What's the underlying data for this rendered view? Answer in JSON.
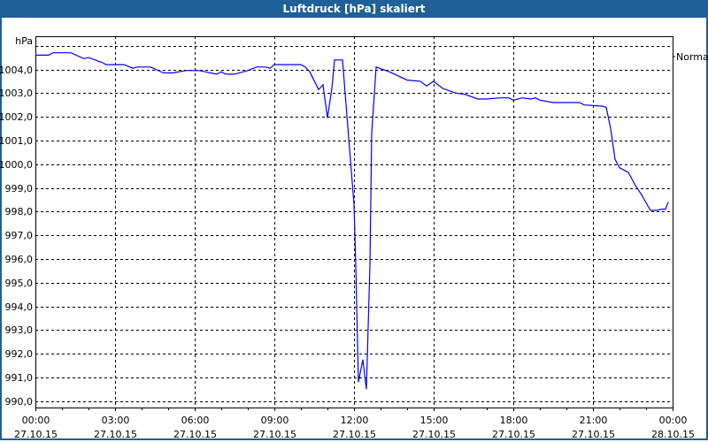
{
  "window": {
    "title": "Luftdruck [hPa] skaliert"
  },
  "colors": {
    "titlebar": "#1f6097",
    "series": "#0000ff",
    "grid": "#000000"
  },
  "chart_data": {
    "type": "line",
    "title": "Luftdruck [hPa] skaliert",
    "ylabel": "hPa",
    "ylim": [
      990,
      1005
    ],
    "xlim": [
      "27.10.15 00:00",
      "28.10.15 00:00"
    ],
    "grid": true,
    "legend": "right",
    "y_ticks": [
      "990,0",
      "991,0",
      "992,0",
      "993,0",
      "994,0",
      "995,0",
      "996,0",
      "997,0",
      "998,0",
      "999,0",
      "1000,0",
      "1001,0",
      "1002,0",
      "1003,0",
      "1004,0"
    ],
    "x_ticks": [
      {
        "time": "00:00",
        "date": "27.10.15"
      },
      {
        "time": "03:00",
        "date": "27.10.15"
      },
      {
        "time": "06:00",
        "date": "27.10.15"
      },
      {
        "time": "09:00",
        "date": "27.10.15"
      },
      {
        "time": "12:00",
        "date": "27.10.15"
      },
      {
        "time": "15:00",
        "date": "27.10.15"
      },
      {
        "time": "18:00",
        "date": "27.10.15"
      },
      {
        "time": "21:00",
        "date": "27.10.15"
      },
      {
        "time": "00:00",
        "date": "28.10.15"
      }
    ],
    "series": [
      {
        "name": "Normal",
        "x": [
          "00:00",
          "00:30",
          "00:40",
          "01:20",
          "01:50",
          "02:00",
          "02:30",
          "02:40",
          "03:20",
          "03:40",
          "03:50",
          "04:20",
          "04:50",
          "05:10",
          "05:40",
          "06:10",
          "06:50",
          "07:00",
          "07:10",
          "07:30",
          "08:00",
          "08:20",
          "08:40",
          "08:50",
          "09:00",
          "10:00",
          "10:10",
          "10:20",
          "10:40",
          "10:50",
          "11:00",
          "11:10",
          "11:16",
          "11:34",
          "11:44",
          "12:00",
          "12:04",
          "12:10",
          "12:20",
          "12:28",
          "12:36",
          "12:40",
          "12:50",
          "13:20",
          "14:00",
          "14:30",
          "14:44",
          "15:00",
          "15:20",
          "15:50",
          "16:10",
          "16:40",
          "17:00",
          "17:30",
          "17:50",
          "18:00",
          "18:20",
          "18:40",
          "18:50",
          "19:00",
          "19:30",
          "20:30",
          "20:40",
          "21:20",
          "21:30",
          "21:40",
          "21:50",
          "22:00",
          "22:20",
          "22:36",
          "22:50",
          "23:10",
          "23:24",
          "23:36",
          "23:44",
          "23:50"
        ],
        "y": [
          1004.6,
          1004.6,
          1004.7,
          1004.7,
          1004.45,
          1004.5,
          1004.3,
          1004.2,
          1004.2,
          1004.05,
          1004.1,
          1004.1,
          1003.85,
          1003.85,
          1003.95,
          1003.95,
          1003.8,
          1003.9,
          1003.8,
          1003.8,
          1003.95,
          1004.1,
          1004.1,
          1004.05,
          1004.2,
          1004.2,
          1004.1,
          1003.9,
          1003.15,
          1003.35,
          1001.95,
          1003.2,
          1004.4,
          1004.4,
          1002.05,
          998.3,
          995.75,
          990.8,
          991.75,
          990.5,
          995.75,
          1001.3,
          1004.1,
          1003.9,
          1003.55,
          1003.5,
          1003.3,
          1003.5,
          1003.2,
          1003.0,
          1002.95,
          1002.75,
          1002.75,
          1002.8,
          1002.8,
          1002.7,
          1002.8,
          1002.75,
          1002.8,
          1002.7,
          1002.6,
          1002.6,
          1002.5,
          1002.45,
          1002.4,
          1001.5,
          1000.2,
          999.85,
          999.65,
          999.1,
          998.7,
          998.05,
          998.05,
          998.1,
          998.1,
          998.4
        ]
      }
    ]
  }
}
